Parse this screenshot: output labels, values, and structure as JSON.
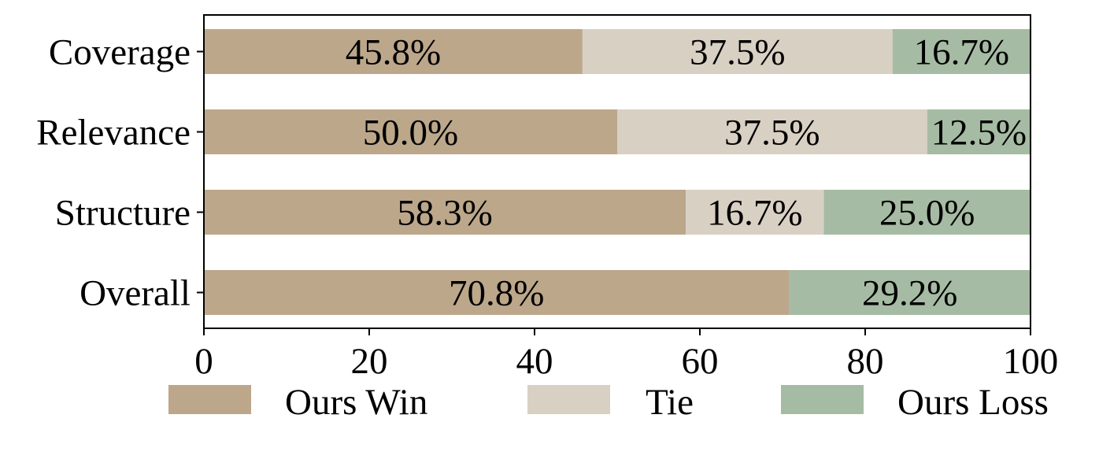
{
  "chart_data": {
    "type": "bar",
    "orientation": "horizontal",
    "stacked": true,
    "title": "",
    "xlabel": "",
    "ylabel": "",
    "categories": [
      "Coverage",
      "Relevance",
      "Structure",
      "Overall"
    ],
    "xlim": [
      0,
      100
    ],
    "xticks": [
      "0",
      "20",
      "40",
      "60",
      "80",
      "100"
    ],
    "grid": false,
    "legend_position": "bottom",
    "series": [
      {
        "name": "Ours Win",
        "color": "#bca78b",
        "values": [
          45.8,
          50.0,
          58.3,
          70.8
        ],
        "labels": [
          "45.8%",
          "50.0%",
          "58.3%",
          "70.8%"
        ]
      },
      {
        "name": "Tie",
        "color": "#d9d0c4",
        "values": [
          37.5,
          37.5,
          16.7,
          0
        ],
        "labels": [
          "37.5%",
          "37.5%",
          "16.7%",
          ""
        ]
      },
      {
        "name": "Ours Loss",
        "color": "#a6bba3",
        "values": [
          16.7,
          12.5,
          25.0,
          29.2
        ],
        "labels": [
          "16.7%",
          "12.5%",
          "25.0%",
          "29.2%"
        ]
      }
    ]
  }
}
